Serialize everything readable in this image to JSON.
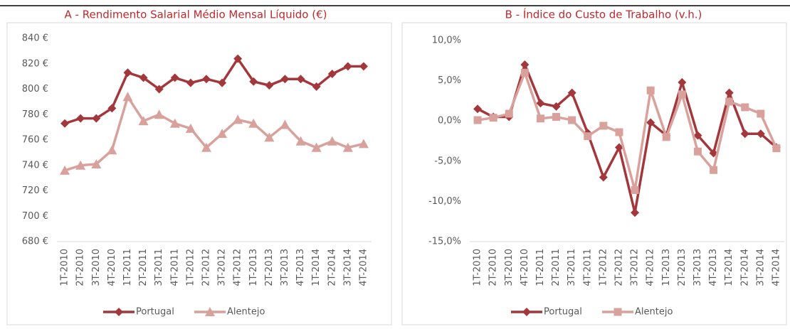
{
  "chart_data": [
    {
      "type": "line",
      "title": "A - Rendimento Salarial Médio Mensal Líquido (€)",
      "categories": [
        "1T-2010",
        "2T-2010",
        "3T-2010",
        "4T-2010",
        "1T-2011",
        "2T-2011",
        "3T-2011",
        "4T-2011",
        "1T-2012",
        "2T-2012",
        "3T-2012",
        "4T-2012",
        "1T-2013",
        "2T-2013",
        "3T-2013",
        "4T-2013",
        "1T-2014",
        "2T-2014",
        "3T-2014",
        "4T-2014"
      ],
      "series": [
        {
          "name": "Portugal",
          "color": "#a3373b",
          "marker": "diamond",
          "values": [
            773,
            777,
            777,
            785,
            813,
            809,
            800,
            809,
            805,
            808,
            805,
            824,
            806,
            803,
            808,
            808,
            802,
            812,
            818,
            818
          ]
        },
        {
          "name": "Alentejo",
          "color": "#d9a19c",
          "marker": "triangle",
          "values": [
            736,
            740,
            741,
            752,
            794,
            775,
            780,
            773,
            769,
            754,
            765,
            776,
            773,
            762,
            772,
            759,
            754,
            759,
            754,
            757
          ]
        }
      ],
      "ylim": [
        680,
        840
      ],
      "yticks": [
        {
          "value": 680,
          "label": "680 €"
        },
        {
          "value": 700,
          "label": "700 €"
        },
        {
          "value": 720,
          "label": "720 €"
        },
        {
          "value": 740,
          "label": "740 €"
        },
        {
          "value": 760,
          "label": "760 €"
        },
        {
          "value": 780,
          "label": "780 €"
        },
        {
          "value": 800,
          "label": "800 €"
        },
        {
          "value": 820,
          "label": "820 €"
        },
        {
          "value": 840,
          "label": "840 €"
        }
      ],
      "grid": false,
      "legend": "bottom"
    },
    {
      "type": "line",
      "title": "B - Índice do Custo de Trabalho (v.h.)",
      "categories": [
        "1T-2010",
        "2T-2010",
        "3T-2010",
        "4T-2010",
        "1T-2011",
        "2T-2011",
        "3T-2011",
        "4T-2011",
        "1T-2012",
        "2T-2012",
        "3T-2012",
        "4T-2012",
        "1T-2013",
        "2T-2013",
        "3T-2013",
        "4T-2013",
        "1T-2014",
        "2T-2014",
        "3T-2014",
        "4T-2014"
      ],
      "series": [
        {
          "name": "Portugal",
          "color": "#a3373b",
          "marker": "diamond",
          "values": [
            1.5,
            0.5,
            0.5,
            7.0,
            2.2,
            1.8,
            3.5,
            -1.5,
            -7.0,
            -3.3,
            -11.4,
            -0.2,
            -1.8,
            4.8,
            -1.8,
            -4.0,
            3.5,
            -1.6,
            -1.6,
            -3.3
          ]
        },
        {
          "name": "Alentejo",
          "color": "#d9a19c",
          "marker": "square",
          "values": [
            0.1,
            0.4,
            0.9,
            6.0,
            0.3,
            0.5,
            0.1,
            -1.9,
            -0.6,
            -1.4,
            -8.6,
            3.8,
            -2.0,
            3.3,
            -3.8,
            -6.1,
            2.4,
            1.7,
            0.9,
            -3.4
          ]
        }
      ],
      "ylim": [
        -15,
        10
      ],
      "yticks": [
        {
          "value": -15,
          "label": "-15,0%"
        },
        {
          "value": -10,
          "label": "-10,0%"
        },
        {
          "value": -5,
          "label": "-5,0%"
        },
        {
          "value": 0,
          "label": "0,0%"
        },
        {
          "value": 5,
          "label": "5,0%"
        },
        {
          "value": 10,
          "label": "10,0%"
        }
      ],
      "grid": false,
      "legend": "bottom"
    }
  ]
}
